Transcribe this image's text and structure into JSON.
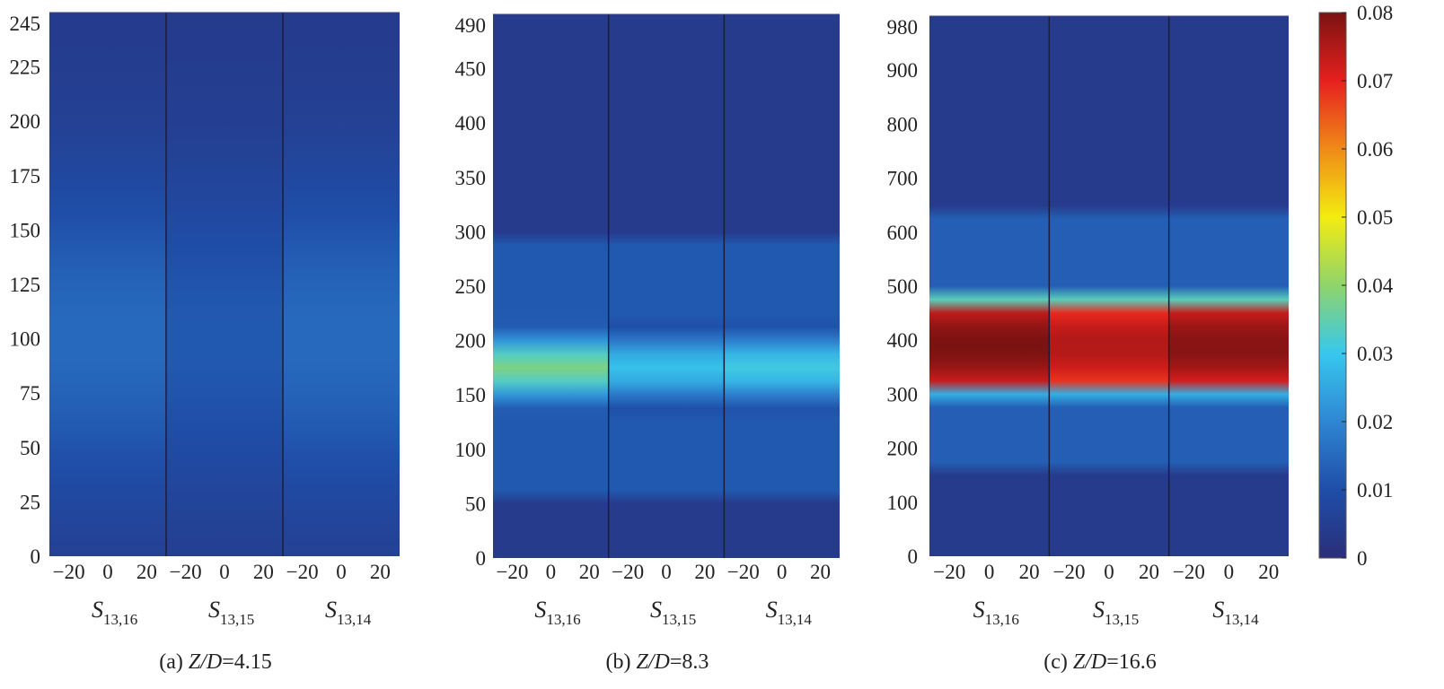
{
  "chart_data": {
    "type": "heatmap",
    "colorbar": {
      "min": 0,
      "max": 0.08,
      "tick_labels": [
        "0.08",
        "0.07",
        "0.06",
        "0.05",
        "0.04",
        "0.03",
        "0.02",
        "0.01",
        "0"
      ],
      "tick_values": [
        0.08,
        0.07,
        0.06,
        0.05,
        0.04,
        0.03,
        0.02,
        0.01,
        0
      ],
      "colormap": [
        "#2a2f7a",
        "#1f4ea8",
        "#2f86d2",
        "#37c8ee",
        "#8fd46a",
        "#f3ec10",
        "#f08a18",
        "#e6201e",
        "#7a1212"
      ]
    },
    "panels": [
      {
        "caption_prefix": "(a) ",
        "caption_italic": "Z/D",
        "caption_suffix": "=4.15",
        "y_ticks": [
          "0",
          "25",
          "50",
          "75",
          "100",
          "125",
          "150",
          "175",
          "200",
          "225",
          "245"
        ],
        "y_values": [
          0,
          25,
          50,
          75,
          100,
          125,
          150,
          175,
          200,
          225,
          245
        ],
        "ylim": [
          0,
          250
        ],
        "x_ticks": [
          "−20",
          "0",
          "20"
        ],
        "x_values": [
          -20,
          0,
          20
        ],
        "sections": [
          {
            "label": "S",
            "subscript": "13,16"
          },
          {
            "label": "S",
            "subscript": "13,15"
          },
          {
            "label": "S",
            "subscript": "13,14"
          }
        ],
        "band": {
          "center": 100,
          "half_width": 55,
          "peak": [
            0.015,
            0.012,
            0.015
          ]
        }
      },
      {
        "caption_prefix": "(b) ",
        "caption_italic": "Z/D",
        "caption_suffix": "=8.3",
        "y_ticks": [
          "0",
          "50",
          "100",
          "150",
          "200",
          "250",
          "300",
          "350",
          "400",
          "450",
          "490"
        ],
        "y_values": [
          0,
          50,
          100,
          150,
          200,
          250,
          300,
          350,
          400,
          450,
          490
        ],
        "ylim": [
          0,
          500
        ],
        "x_ticks": [
          "−20",
          "0",
          "20"
        ],
        "x_values": [
          -20,
          0,
          20
        ],
        "sections": [
          {
            "label": "S",
            "subscript": "13,16"
          },
          {
            "label": "S",
            "subscript": "13,15"
          },
          {
            "label": "S",
            "subscript": "13,14"
          }
        ],
        "band": {
          "center": 175,
          "half_width": 35,
          "peak": [
            0.038,
            0.029,
            0.031
          ]
        }
      },
      {
        "caption_prefix": "(c) ",
        "caption_italic": "Z/D",
        "caption_suffix": "=16.6",
        "y_ticks": [
          "0",
          "100",
          "200",
          "300",
          "400",
          "500",
          "600",
          "700",
          "800",
          "900",
          "980"
        ],
        "y_values": [
          0,
          100,
          200,
          300,
          400,
          500,
          600,
          700,
          800,
          900,
          980
        ],
        "ylim": [
          0,
          1000
        ],
        "x_ticks": [
          "−20",
          "0",
          "20"
        ],
        "x_values": [
          -20,
          0,
          20
        ],
        "sections": [
          {
            "label": "S",
            "subscript": "13,16"
          },
          {
            "label": "S",
            "subscript": "13,15"
          },
          {
            "label": "S",
            "subscript": "13,14"
          }
        ],
        "band": {
          "center": 390,
          "half_width": 75,
          "peak": [
            0.08,
            0.075,
            0.079
          ]
        }
      }
    ]
  }
}
